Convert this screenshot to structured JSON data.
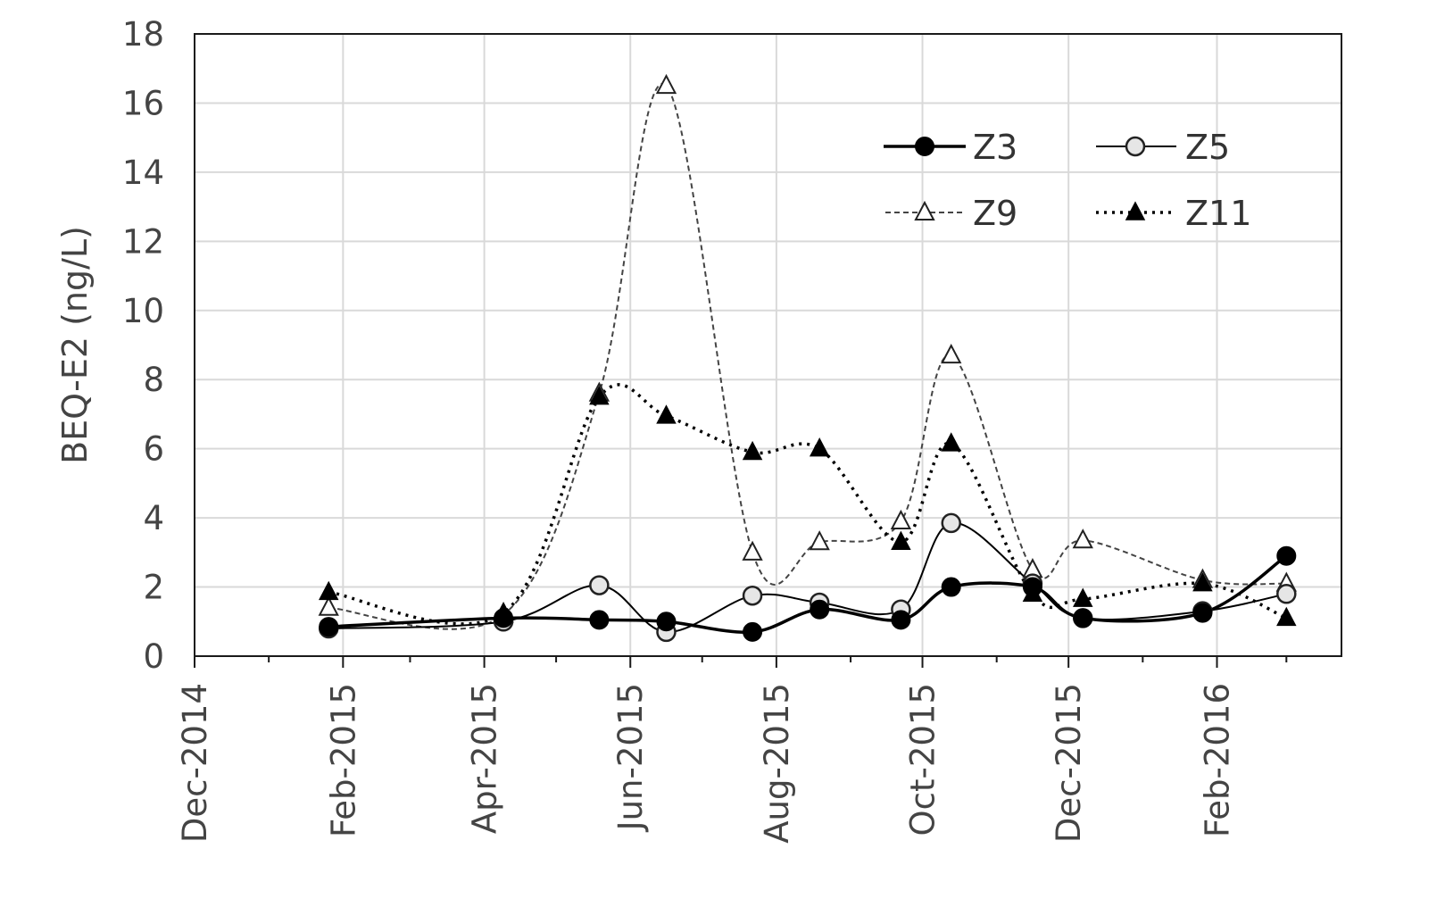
{
  "chart_data": {
    "type": "line",
    "title": "",
    "xlabel": "",
    "ylabel": "BEQ-E2 (ng/L)",
    "ylim": [
      0,
      18
    ],
    "yticks": [
      0,
      2,
      4,
      6,
      8,
      10,
      12,
      14,
      16,
      18
    ],
    "xlim": [
      "2014-12-01",
      "2016-03-24"
    ],
    "xticks": [
      {
        "date": "2014-12-01",
        "label": "Dec-2014"
      },
      {
        "date": "2015-02-01",
        "label": "Feb-2015"
      },
      {
        "date": "2015-04-01",
        "label": "Apr-2015"
      },
      {
        "date": "2015-06-01",
        "label": "Jun-2015"
      },
      {
        "date": "2015-08-01",
        "label": "Aug-2015"
      },
      {
        "date": "2015-10-01",
        "label": "Oct-2015"
      },
      {
        "date": "2015-12-01",
        "label": "Dec-2015"
      },
      {
        "date": "2016-02-01",
        "label": "Feb-2016"
      }
    ],
    "minor_xticks": [
      "2015-01-01",
      "2015-03-01",
      "2015-05-01",
      "2015-07-01",
      "2015-09-01",
      "2015-11-01",
      "2016-01-01",
      "2016-03-01"
    ],
    "grid": true,
    "legend_position": "top-right",
    "series": [
      {
        "name": "Z3",
        "line_style": "solid-thick",
        "marker": "filled-circle",
        "points": [
          {
            "x": "2015-01-26",
            "y": 0.85
          },
          {
            "x": "2015-04-09",
            "y": 1.1
          },
          {
            "x": "2015-05-19",
            "y": 1.05
          },
          {
            "x": "2015-06-16",
            "y": 1.0
          },
          {
            "x": "2015-07-22",
            "y": 0.7
          },
          {
            "x": "2015-08-19",
            "y": 1.35
          },
          {
            "x": "2015-09-22",
            "y": 1.05
          },
          {
            "x": "2015-10-13",
            "y": 2.0
          },
          {
            "x": "2015-11-16",
            "y": 2.0
          },
          {
            "x": "2015-12-07",
            "y": 1.1
          },
          {
            "x": "2016-01-26",
            "y": 1.25
          },
          {
            "x": "2016-03-01",
            "y": 2.9
          }
        ]
      },
      {
        "name": "Z5",
        "line_style": "solid-thin",
        "marker": "open-circle",
        "points": [
          {
            "x": "2015-01-26",
            "y": 0.8
          },
          {
            "x": "2015-04-09",
            "y": 1.0
          },
          {
            "x": "2015-05-19",
            "y": 2.05
          },
          {
            "x": "2015-06-16",
            "y": 0.7
          },
          {
            "x": "2015-07-22",
            "y": 1.75
          },
          {
            "x": "2015-08-19",
            "y": 1.55
          },
          {
            "x": "2015-09-22",
            "y": 1.35
          },
          {
            "x": "2015-10-13",
            "y": 3.85
          },
          {
            "x": "2015-11-16",
            "y": 2.1
          },
          {
            "x": "2015-12-07",
            "y": 1.1
          },
          {
            "x": "2016-01-26",
            "y": 1.3
          },
          {
            "x": "2016-03-01",
            "y": 1.8
          }
        ]
      },
      {
        "name": "Z9",
        "line_style": "dashed",
        "marker": "open-triangle",
        "points": [
          {
            "x": "2015-01-26",
            "y": 1.4
          },
          {
            "x": "2015-04-09",
            "y": 1.2
          },
          {
            "x": "2015-05-19",
            "y": 7.6
          },
          {
            "x": "2015-06-16",
            "y": 16.5
          },
          {
            "x": "2015-07-22",
            "y": 3.0
          },
          {
            "x": "2015-08-19",
            "y": 3.3
          },
          {
            "x": "2015-09-22",
            "y": 3.9
          },
          {
            "x": "2015-10-13",
            "y": 8.7
          },
          {
            "x": "2015-11-16",
            "y": 2.5
          },
          {
            "x": "2015-12-07",
            "y": 3.35
          },
          {
            "x": "2016-01-26",
            "y": 2.2
          },
          {
            "x": "2016-03-01",
            "y": 2.1
          }
        ]
      },
      {
        "name": "Z11",
        "line_style": "dotted",
        "marker": "filled-triangle",
        "points": [
          {
            "x": "2015-01-26",
            "y": 1.85
          },
          {
            "x": "2015-04-09",
            "y": 1.25
          },
          {
            "x": "2015-05-19",
            "y": 7.5
          },
          {
            "x": "2015-06-16",
            "y": 6.95
          },
          {
            "x": "2015-07-22",
            "y": 5.9
          },
          {
            "x": "2015-08-19",
            "y": 6.0
          },
          {
            "x": "2015-09-22",
            "y": 3.3
          },
          {
            "x": "2015-10-13",
            "y": 6.15
          },
          {
            "x": "2015-11-16",
            "y": 1.8
          },
          {
            "x": "2015-12-07",
            "y": 1.65
          },
          {
            "x": "2016-01-26",
            "y": 2.1
          },
          {
            "x": "2016-03-01",
            "y": 1.1
          }
        ]
      }
    ]
  }
}
